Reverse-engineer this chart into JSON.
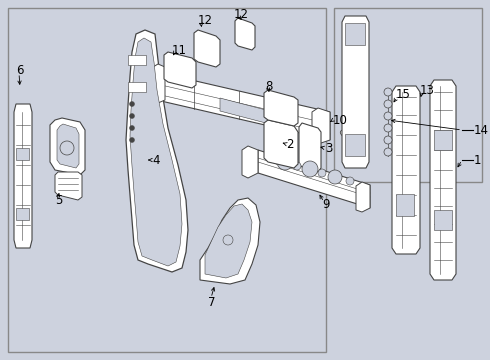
{
  "bg_color": "#cdd2de",
  "fig_w": 4.9,
  "fig_h": 3.6,
  "dpi": 100,
  "lc": "#444444",
  "wc": "#ffffff",
  "fs": 8.5
}
